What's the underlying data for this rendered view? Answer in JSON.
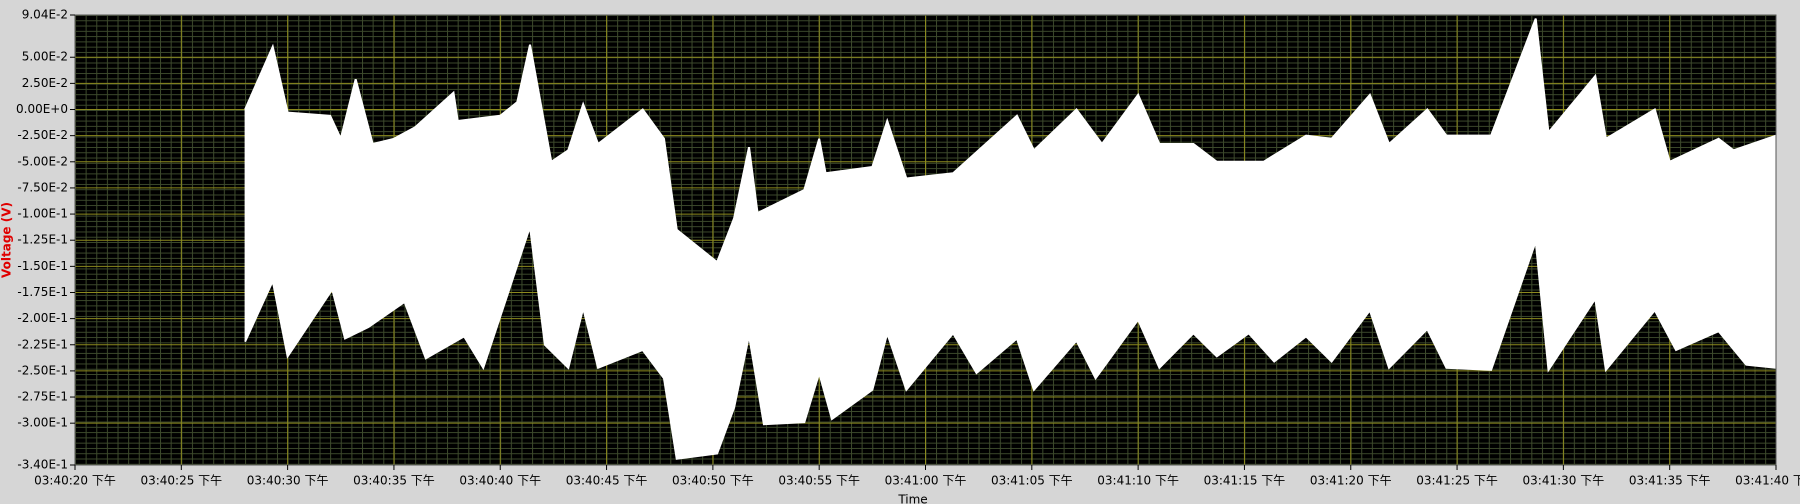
{
  "chart_data": {
    "type": "band",
    "ylabel": "Voltage (V)",
    "xlabel": "Time",
    "xlim": [
      56420,
      56500
    ],
    "xticks": [
      {
        "value": 56420,
        "label": "03:40:20 下午"
      },
      {
        "value": 56425,
        "label": "03:40:25 下午"
      },
      {
        "value": 56430,
        "label": "03:40:30 下午"
      },
      {
        "value": 56435,
        "label": "03:40:35 下午"
      },
      {
        "value": 56440,
        "label": "03:40:40 下午"
      },
      {
        "value": 56445,
        "label": "03:40:45 下午"
      },
      {
        "value": 56450,
        "label": "03:40:50 下午"
      },
      {
        "value": 56455,
        "label": "03:40:55 下午"
      },
      {
        "value": 56460,
        "label": "03:41:00 下午"
      },
      {
        "value": 56465,
        "label": "03:41:05 下午"
      },
      {
        "value": 56470,
        "label": "03:41:10 下午"
      },
      {
        "value": 56475,
        "label": "03:41:15 下午"
      },
      {
        "value": 56480,
        "label": "03:41:20 下午"
      },
      {
        "value": 56485,
        "label": "03:41:25 下午"
      },
      {
        "value": 56490,
        "label": "03:41:30 下午"
      },
      {
        "value": 56495,
        "label": "03:41:35 下午"
      },
      {
        "value": 56500,
        "label": "03:41:40 下午"
      }
    ],
    "ylim": [
      -0.34,
      0.0904
    ],
    "yticks": [
      {
        "value": 0.0904,
        "label": "9.04E-2"
      },
      {
        "value": 0.05,
        "label": "5.00E-2"
      },
      {
        "value": 0.025,
        "label": "2.50E-2"
      },
      {
        "value": 0,
        "label": "0.00E+0"
      },
      {
        "value": -0.025,
        "label": "-2.50E-2"
      },
      {
        "value": -0.05,
        "label": "-5.00E-2"
      },
      {
        "value": -0.075,
        "label": "-7.50E-2"
      },
      {
        "value": -0.1,
        "label": "-1.00E-1"
      },
      {
        "value": -0.125,
        "label": "-1.25E-1"
      },
      {
        "value": -0.15,
        "label": "-1.50E-1"
      },
      {
        "value": -0.175,
        "label": "-1.75E-1"
      },
      {
        "value": -0.2,
        "label": "-2.00E-1"
      },
      {
        "value": -0.225,
        "label": "-2.25E-1"
      },
      {
        "value": -0.25,
        "label": "-2.50E-1"
      },
      {
        "value": -0.275,
        "label": "-2.75E-1"
      },
      {
        "value": -0.3,
        "label": "-3.00E-1"
      },
      {
        "value": -0.34,
        "label": "-3.40E-1"
      }
    ],
    "grid": true,
    "series": [
      {
        "color": "#ffffff",
        "x": [
          56428,
          56429.3,
          56430,
          56432,
          56432.5,
          56433.2,
          56434,
          56435,
          56436,
          56437.8,
          56438,
          56440,
          56440.8,
          56441.4,
          56442.4,
          56443.2,
          56443.9,
          56444.6,
          56446.7,
          56447.7,
          56448.3,
          56450.2,
          56451,
          56451.7,
          56452.1,
          56454.3,
          56455,
          56455.3,
          56457.5,
          56458.2,
          56459.1,
          56461.3,
          56464.3,
          56465.1,
          56467.1,
          56468.3,
          56470,
          56471,
          56472.6,
          56473.7,
          56475.9,
          56477.9,
          56479.1,
          56480.9,
          56481.8,
          56483.6,
          56484.5,
          56486.6,
          56488.7,
          56489.3,
          56491.5,
          56492,
          56494.3,
          56495,
          56497.3,
          56498,
          56500
        ],
        "values": [
          0.0,
          0.06,
          -0.003,
          -0.006,
          -0.028,
          0.029,
          -0.033,
          -0.028,
          -0.017,
          0.016,
          -0.011,
          -0.006,
          0.007,
          0.062,
          -0.05,
          -0.039,
          0.005,
          -0.033,
          0.0,
          -0.028,
          -0.115,
          -0.146,
          -0.104,
          -0.036,
          -0.099,
          -0.077,
          -0.028,
          -0.061,
          -0.055,
          -0.011,
          -0.066,
          -0.061,
          -0.006,
          -0.039,
          0.0,
          -0.033,
          0.014,
          -0.033,
          -0.033,
          -0.05,
          -0.05,
          -0.025,
          -0.028,
          0.014,
          -0.033,
          0.0,
          -0.025,
          -0.025,
          0.087,
          -0.022,
          0.032,
          -0.028,
          0.0,
          -0.05,
          -0.028,
          -0.039,
          -0.025
        ]
      },
      {
        "color": "#ffffff",
        "x": [
          56428,
          56429.3,
          56430,
          56432.1,
          56432.7,
          56433.8,
          56435.5,
          56436.5,
          56438.3,
          56439.2,
          56441.4,
          56442.1,
          56443.2,
          56443.9,
          56444.6,
          56446.7,
          56447.7,
          56448.3,
          56450.2,
          56451,
          56451.7,
          56452.4,
          56454.3,
          56455,
          56455.6,
          56457.5,
          56458.2,
          56459.1,
          56461.3,
          56462.4,
          56464.3,
          56465.1,
          56467.1,
          56468,
          56470,
          56471,
          56472.6,
          56473.7,
          56475.2,
          56476.4,
          56477.9,
          56479.1,
          56480.9,
          56481.8,
          56483.6,
          56484.5,
          56486.6,
          56488.7,
          56489.3,
          56491.5,
          56492,
          56494.3,
          56495.3,
          56497.3,
          56498.6,
          56500
        ],
        "values": [
          -0.222,
          -0.164,
          -0.236,
          -0.172,
          -0.219,
          -0.208,
          -0.184,
          -0.238,
          -0.217,
          -0.247,
          -0.112,
          -0.225,
          -0.247,
          -0.19,
          -0.247,
          -0.23,
          -0.257,
          -0.334,
          -0.329,
          -0.285,
          -0.216,
          -0.301,
          -0.299,
          -0.252,
          -0.296,
          -0.268,
          -0.214,
          -0.268,
          -0.214,
          -0.252,
          -0.219,
          -0.268,
          -0.221,
          -0.257,
          -0.201,
          -0.247,
          -0.214,
          -0.236,
          -0.214,
          -0.241,
          -0.217,
          -0.241,
          -0.192,
          -0.247,
          -0.21,
          -0.247,
          -0.249,
          -0.126,
          -0.249,
          -0.181,
          -0.249,
          -0.192,
          -0.23,
          -0.212,
          -0.244,
          -0.247
        ]
      }
    ]
  }
}
